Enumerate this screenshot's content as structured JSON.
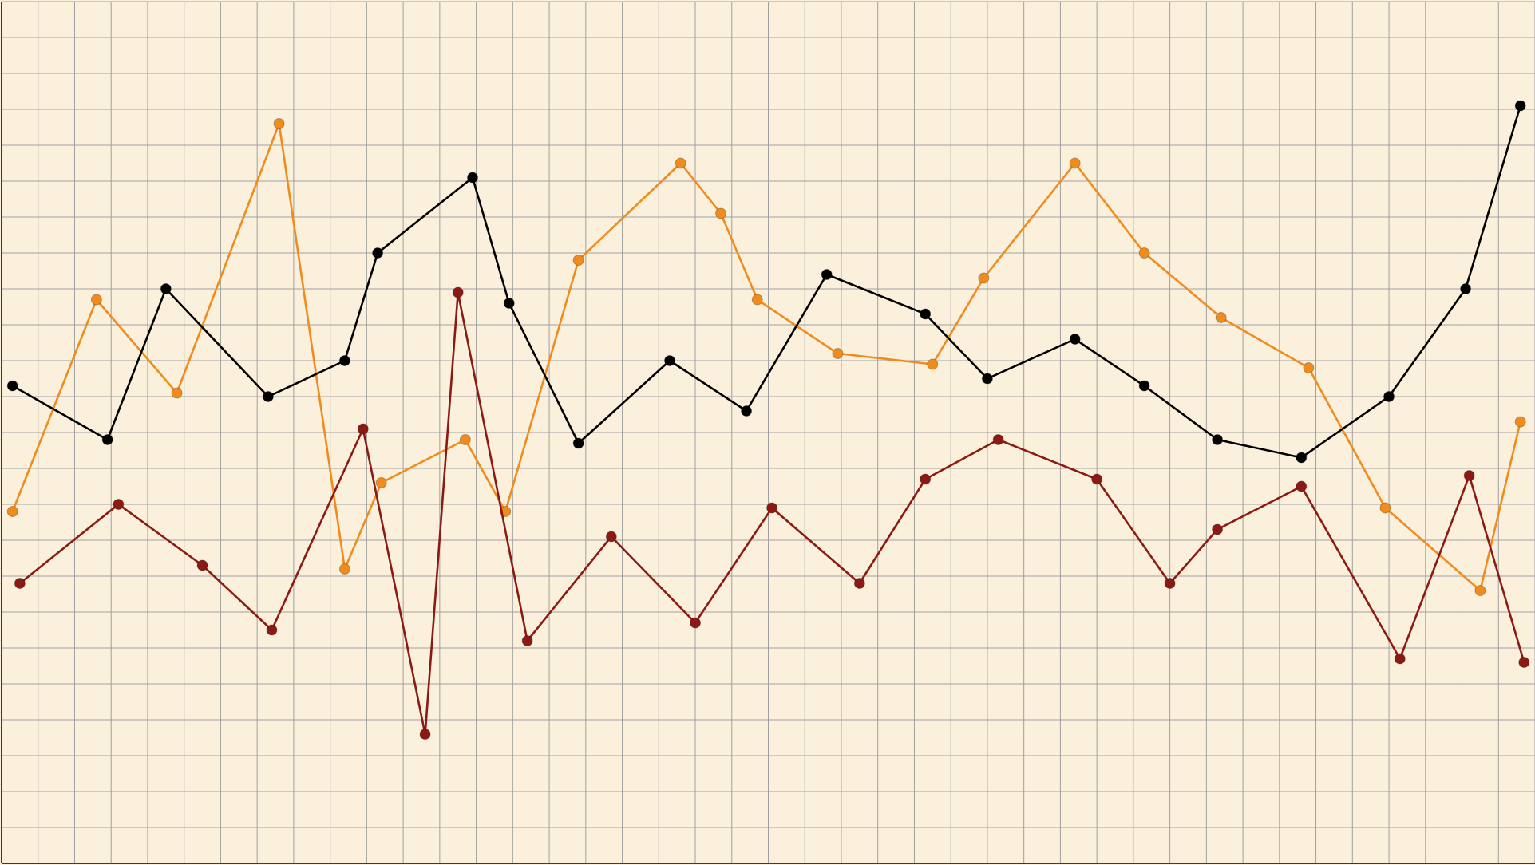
{
  "chart_data": {
    "type": "line",
    "title": "",
    "xlabel": "",
    "ylabel": "",
    "xlim": [
      0,
      42
    ],
    "ylim": [
      0,
      24
    ],
    "grid": true,
    "legend": "none",
    "colors": {
      "background": "#fbf0dc",
      "grid": "#a0a0a0",
      "axis": "#3a3a3a"
    },
    "series": [
      {
        "color": "#f08c1e",
        "points": [
          [
            0.3,
            9.8
          ],
          [
            2.6,
            15.7
          ],
          [
            4.8,
            13.1
          ],
          [
            7.6,
            20.6
          ],
          [
            9.4,
            8.2
          ],
          [
            10.4,
            10.6
          ],
          [
            12.7,
            11.8
          ],
          [
            13.8,
            9.8
          ],
          [
            15.8,
            16.8
          ],
          [
            18.6,
            19.5
          ],
          [
            19.7,
            18.1
          ],
          [
            20.7,
            15.7
          ],
          [
            22.9,
            14.2
          ],
          [
            25.5,
            13.9
          ],
          [
            26.9,
            16.3
          ],
          [
            29.4,
            19.5
          ],
          [
            31.3,
            17.0
          ],
          [
            33.4,
            15.2
          ],
          [
            35.8,
            13.8
          ],
          [
            37.9,
            9.9
          ],
          [
            40.5,
            7.6
          ],
          [
            41.6,
            12.3
          ]
        ]
      },
      {
        "color": "#000000",
        "points": [
          [
            0.3,
            13.3
          ],
          [
            2.9,
            11.8
          ],
          [
            4.5,
            16.0
          ],
          [
            7.3,
            13.0
          ],
          [
            9.4,
            14.0
          ],
          [
            10.3,
            17.0
          ],
          [
            12.9,
            19.1
          ],
          [
            13.9,
            15.6
          ],
          [
            15.8,
            11.7
          ],
          [
            18.3,
            14.0
          ],
          [
            20.4,
            12.6
          ],
          [
            22.6,
            16.4
          ],
          [
            25.3,
            15.3
          ],
          [
            27.0,
            13.5
          ],
          [
            29.4,
            14.6
          ],
          [
            31.3,
            13.3
          ],
          [
            33.3,
            11.8
          ],
          [
            35.6,
            11.3
          ],
          [
            38.0,
            13.0
          ],
          [
            40.1,
            16.0
          ],
          [
            41.6,
            21.1
          ]
        ]
      },
      {
        "color": "#8c1a14",
        "points": [
          [
            0.5,
            7.8
          ],
          [
            3.2,
            10.0
          ],
          [
            5.5,
            8.3
          ],
          [
            7.4,
            6.5
          ],
          [
            9.9,
            12.1
          ],
          [
            11.6,
            3.6
          ],
          [
            12.5,
            15.9
          ],
          [
            14.4,
            6.2
          ],
          [
            16.7,
            9.1
          ],
          [
            19.0,
            6.7
          ],
          [
            21.1,
            9.9
          ],
          [
            23.5,
            7.8
          ],
          [
            25.3,
            10.7
          ],
          [
            27.3,
            11.8
          ],
          [
            30.0,
            10.7
          ],
          [
            32.0,
            7.8
          ],
          [
            33.3,
            9.3
          ],
          [
            35.6,
            10.5
          ],
          [
            38.3,
            5.7
          ],
          [
            40.2,
            10.8
          ],
          [
            41.7,
            5.6
          ]
        ]
      }
    ]
  }
}
